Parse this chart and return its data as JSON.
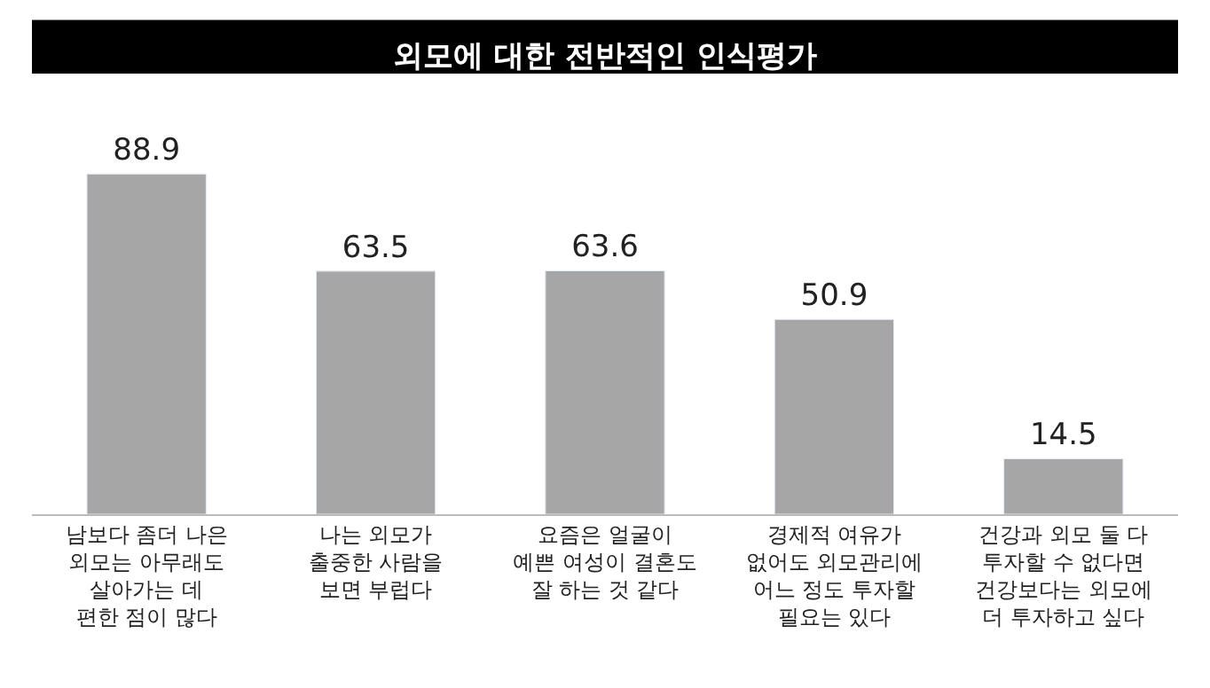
{
  "chart_data": {
    "type": "bar",
    "title": "외모에 대한 전반적인 인식평가",
    "categories": [
      "남보다 좀더 나은\n외모는 아무래도\n살아가는 데\n편한 점이 많다",
      "나는 외모가\n출중한 사람을\n보면 부럽다",
      "요즘은 얼굴이\n예쁜 여성이 결혼도\n잘 하는 것 같다",
      "경제적 여유가\n없어도 외모관리에\n어느 정도 투자할\n필요는 있다",
      "건강과 외모 둘 다\n투자할 수 없다면\n건강보다는 외모에\n더 투자하고 싶다"
    ],
    "values": [
      88.9,
      63.5,
      63.6,
      50.9,
      14.5
    ],
    "color": "#a6a6a6",
    "data_labels": true
  }
}
